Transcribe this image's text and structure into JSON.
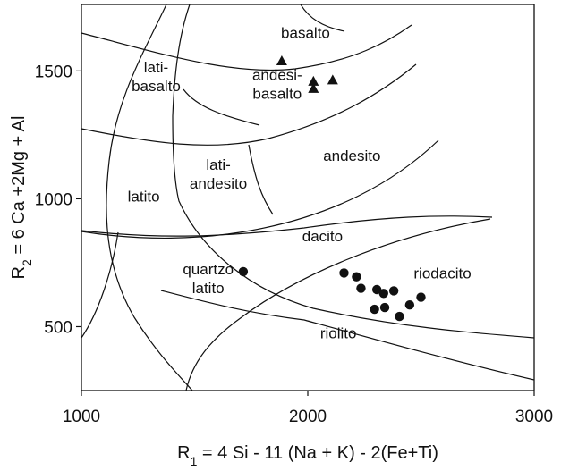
{
  "chart_data": {
    "type": "scatter",
    "title": "",
    "xlabel": "R1 = 4 Si - 11 (Na + K) - 2(Fe+Ti)",
    "ylabel": "R2 = 6 Ca +2Mg + Al",
    "xlim": [
      1000,
      3000
    ],
    "ylim": [
      250,
      1760
    ],
    "x_ticks": [
      "1000",
      "2000",
      "3000"
    ],
    "y_ticks": [
      "500",
      "1000",
      "1500"
    ],
    "grid": false,
    "legend": "none",
    "series": [
      {
        "marker": "triangle",
        "color": "#111111",
        "points": [
          {
            "x": 1885,
            "y": 1540
          },
          {
            "x": 2025,
            "y": 1460
          },
          {
            "x": 2025,
            "y": 1432
          },
          {
            "x": 2110,
            "y": 1465
          }
        ]
      },
      {
        "marker": "circle",
        "color": "#111111",
        "points": [
          {
            "x": 1715,
            "y": 715
          },
          {
            "x": 2160,
            "y": 710
          },
          {
            "x": 2215,
            "y": 695
          },
          {
            "x": 2235,
            "y": 650
          },
          {
            "x": 2305,
            "y": 645
          },
          {
            "x": 2335,
            "y": 630
          },
          {
            "x": 2380,
            "y": 640
          },
          {
            "x": 2500,
            "y": 615
          },
          {
            "x": 2450,
            "y": 585
          },
          {
            "x": 2340,
            "y": 575
          },
          {
            "x": 2295,
            "y": 568
          },
          {
            "x": 2405,
            "y": 540
          }
        ]
      }
    ],
    "regions": [
      {
        "name": "basalto",
        "x": 1990,
        "y": 1650
      },
      {
        "name": "lati-\nbasalto",
        "x": 1330,
        "y": 1480
      },
      {
        "name": "andesi-\nbasalto",
        "x": 1865,
        "y": 1450
      },
      {
        "name": "andesito",
        "x": 2195,
        "y": 1170
      },
      {
        "name": "lati-\nandesito",
        "x": 1605,
        "y": 1100
      },
      {
        "name": "latito",
        "x": 1275,
        "y": 1010
      },
      {
        "name": "dacito",
        "x": 2065,
        "y": 855
      },
      {
        "name": "quartzo\nlatito",
        "x": 1560,
        "y": 690
      },
      {
        "name": "riodacito",
        "x": 2595,
        "y": 710
      },
      {
        "name": "riolito",
        "x": 2135,
        "y": 475
      }
    ]
  }
}
